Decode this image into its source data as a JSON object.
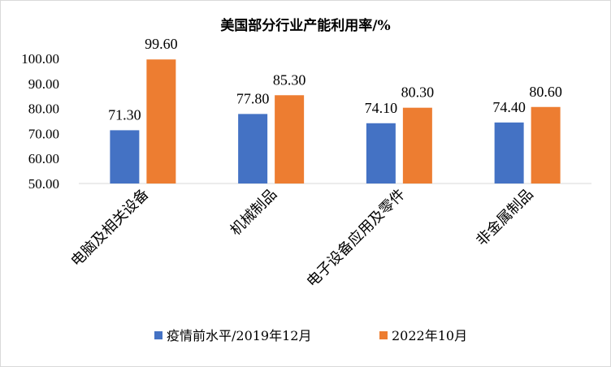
{
  "chart_data": {
    "type": "bar",
    "title": "美国部分行业产能利用率/%",
    "categories": [
      "电脑及相关设备",
      "机械制品",
      "电子设备应用及零件",
      "非金属制品"
    ],
    "series": [
      {
        "name": "疫情前水平/2019年12月",
        "values": [
          71.3,
          77.8,
          74.1,
          74.4
        ],
        "labels": [
          "71.30",
          "77.80",
          "74.10",
          "74.40"
        ],
        "color": "#4472C4"
      },
      {
        "name": "2022年10月",
        "values": [
          99.6,
          85.3,
          80.3,
          80.6
        ],
        "labels": [
          "99.60",
          "85.30",
          "80.30",
          "80.60"
        ],
        "color": "#ED7D31"
      }
    ],
    "yticks": [
      "50.00",
      "60.00",
      "70.00",
      "80.00",
      "90.00",
      "100.00"
    ],
    "ylim": [
      50,
      100
    ],
    "grid": false,
    "legend": "bottom"
  }
}
